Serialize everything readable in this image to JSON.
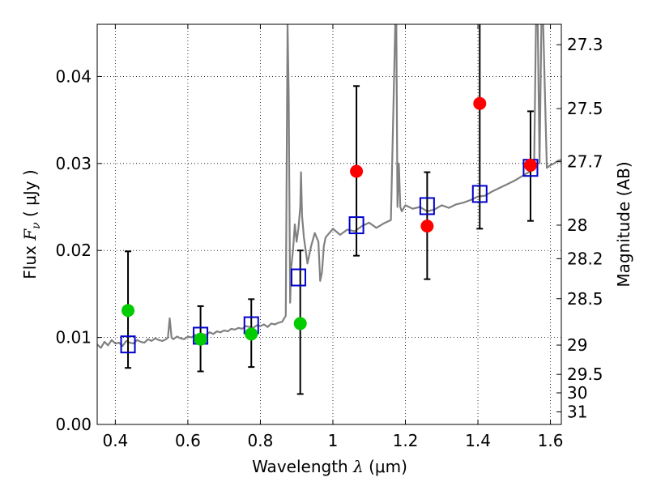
{
  "chart_data": {
    "type": "scatter",
    "xlabel": {
      "prefix": "Wavelength  ",
      "symbol": "λ",
      "unit": " (μm)"
    },
    "ylabel": {
      "prefix": "Flux  ",
      "symbol": "F",
      "sub": "ν",
      "unit": "  ( μJy )"
    },
    "y2label": "Magnitude (AB)",
    "xlim": [
      0.35,
      1.63
    ],
    "ylim": [
      0.0,
      0.046
    ],
    "grid": true,
    "x_ticks": [
      {
        "value": 0.4,
        "label": "0.4"
      },
      {
        "value": 0.6,
        "label": "0.6"
      },
      {
        "value": 0.8,
        "label": "0.8"
      },
      {
        "value": 1.0,
        "label": "1"
      },
      {
        "value": 1.2,
        "label": "1.2"
      },
      {
        "value": 1.4,
        "label": "1.4"
      },
      {
        "value": 1.6,
        "label": "1.6"
      }
    ],
    "y_ticks": [
      {
        "value": 0.0,
        "label": "0.00"
      },
      {
        "value": 0.01,
        "label": "0.01"
      },
      {
        "value": 0.02,
        "label": "0.02"
      },
      {
        "value": 0.03,
        "label": "0.03"
      },
      {
        "value": 0.04,
        "label": "0.04"
      }
    ],
    "y2_ticks": [
      {
        "value": 27.3,
        "label": "27.3"
      },
      {
        "value": 27.5,
        "label": "27.5"
      },
      {
        "value": 27.7,
        "label": "27.7"
      },
      {
        "value": 28.0,
        "label": "28"
      },
      {
        "value": 28.2,
        "label": "28.2"
      },
      {
        "value": 28.5,
        "label": "28.5"
      },
      {
        "value": 29.0,
        "label": "29"
      },
      {
        "value": 29.5,
        "label": "29.5"
      },
      {
        "value": 30.0,
        "label": "30"
      },
      {
        "value": 31.0,
        "label": "31"
      }
    ],
    "series": [
      {
        "type": "line",
        "color": "#808080",
        "x": [
          0.35,
          0.36,
          0.37,
          0.38,
          0.39,
          0.4,
          0.41,
          0.42,
          0.43,
          0.44,
          0.45,
          0.46,
          0.47,
          0.48,
          0.49,
          0.5,
          0.51,
          0.52,
          0.53,
          0.54,
          0.545,
          0.55,
          0.555,
          0.56,
          0.57,
          0.58,
          0.59,
          0.6,
          0.61,
          0.62,
          0.63,
          0.64,
          0.65,
          0.66,
          0.67,
          0.68,
          0.69,
          0.7,
          0.71,
          0.72,
          0.73,
          0.74,
          0.75,
          0.76,
          0.77,
          0.78,
          0.79,
          0.8,
          0.81,
          0.82,
          0.83,
          0.84,
          0.85,
          0.86,
          0.87,
          0.875,
          0.878,
          0.882,
          0.885,
          0.89,
          0.895,
          0.9,
          0.905,
          0.91,
          0.912,
          0.915,
          0.92,
          0.925,
          0.93,
          0.94,
          0.95,
          0.96,
          0.965,
          0.97,
          0.975,
          0.98,
          1.0,
          1.02,
          1.04,
          1.06,
          1.08,
          1.1,
          1.12,
          1.14,
          1.16,
          1.172,
          1.175,
          1.178,
          1.182,
          1.186,
          1.19,
          1.2,
          1.22,
          1.24,
          1.26,
          1.28,
          1.3,
          1.32,
          1.34,
          1.36,
          1.38,
          1.4,
          1.42,
          1.44,
          1.46,
          1.48,
          1.5,
          1.52,
          1.54,
          1.555,
          1.56,
          1.565,
          1.57,
          1.575,
          1.58,
          1.59,
          1.6,
          1.61,
          1.62,
          1.63
        ],
        "y": [
          0.0092,
          0.0088,
          0.0095,
          0.0091,
          0.0097,
          0.0093,
          0.0094,
          0.009,
          0.0096,
          0.0094,
          0.0093,
          0.0097,
          0.0095,
          0.0094,
          0.0098,
          0.0096,
          0.0099,
          0.0097,
          0.0096,
          0.0098,
          0.01,
          0.0122,
          0.01,
          0.0098,
          0.0101,
          0.0099,
          0.0098,
          0.0101,
          0.01,
          0.0103,
          0.0101,
          0.0104,
          0.0103,
          0.0106,
          0.0104,
          0.0107,
          0.0106,
          0.0108,
          0.0107,
          0.011,
          0.0109,
          0.0111,
          0.011,
          0.0113,
          0.0112,
          0.0111,
          0.0114,
          0.0113,
          0.0115,
          0.0112,
          0.0116,
          0.0115,
          0.0117,
          0.0118,
          0.0125,
          0.046,
          0.038,
          0.014,
          0.018,
          0.02,
          0.023,
          0.021,
          0.0225,
          0.025,
          0.029,
          0.024,
          0.0215,
          0.02,
          0.0185,
          0.0205,
          0.022,
          0.021,
          0.0165,
          0.0175,
          0.0205,
          0.0215,
          0.0225,
          0.0218,
          0.0224,
          0.0222,
          0.0228,
          0.0232,
          0.0226,
          0.0231,
          0.0235,
          0.046,
          0.046,
          0.025,
          0.03,
          0.025,
          0.0245,
          0.0252,
          0.0248,
          0.025,
          0.0245,
          0.0247,
          0.0252,
          0.0249,
          0.0253,
          0.0255,
          0.0258,
          0.0262,
          0.0263,
          0.0268,
          0.0272,
          0.0276,
          0.028,
          0.0285,
          0.029,
          0.0296,
          0.046,
          0.046,
          0.03,
          0.046,
          0.046,
          0.0295,
          0.0298,
          0.03,
          0.0303,
          0.0304
        ]
      },
      {
        "type": "points",
        "marker": "square",
        "color": "#0000cc",
        "x": [
          0.435,
          0.635,
          0.775,
          0.905,
          1.065,
          1.26,
          1.405,
          1.545
        ],
        "y": [
          0.0092,
          0.0102,
          0.0114,
          0.0169,
          0.0229,
          0.0251,
          0.0265,
          0.0295
        ]
      },
      {
        "type": "points",
        "marker": "circle",
        "color": "#00cc00",
        "x": [
          0.435,
          0.635,
          0.775,
          0.91
        ],
        "y": [
          0.0131,
          0.0098,
          0.0104,
          0.0116
        ],
        "yerr_low": [
          0.0065,
          0.0061,
          0.0066,
          0.0035
        ],
        "yerr_high": [
          0.0199,
          0.0136,
          0.0144,
          0.02
        ]
      },
      {
        "type": "points",
        "marker": "circle",
        "color": "#ff0000",
        "x": [
          1.065,
          1.26,
          1.405,
          1.545
        ],
        "y": [
          0.0291,
          0.0228,
          0.0369,
          0.0298
        ],
        "yerr_low": [
          0.0194,
          0.0167,
          0.0225,
          0.0234
        ],
        "yerr_high": [
          0.0389,
          0.029,
          0.046,
          0.036
        ]
      }
    ]
  }
}
